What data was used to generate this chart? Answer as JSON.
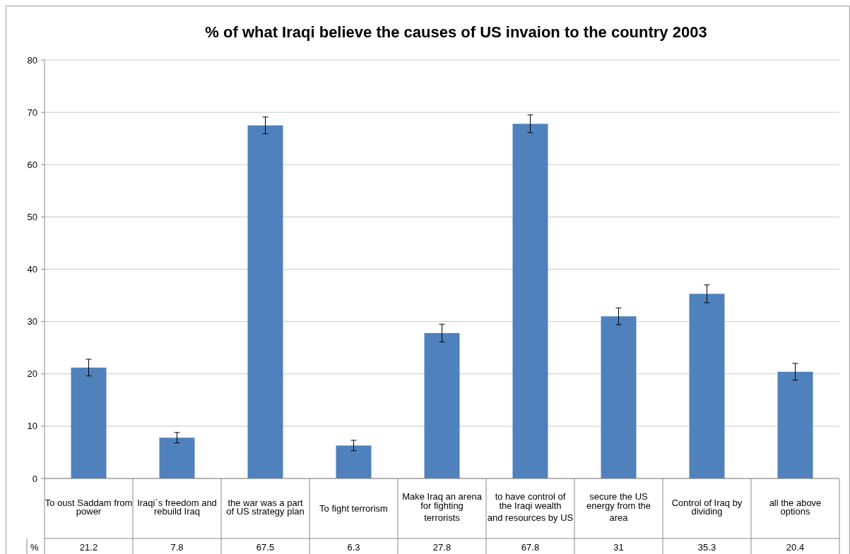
{
  "chart_data": {
    "type": "bar",
    "title": "% of what Iraqi believe the causes of US invaion to the country 2003",
    "categories": [
      "To oust Saddam from power",
      "Iraqi`s freedom and rebuild Iraq",
      "the war was a part of US strategy plan",
      "To fight terrorism",
      "Make Iraq an arena for fighting terrorists",
      "to have control of the Iraqi wealth and resources by US",
      "secure the US energy from the area",
      "Control of Iraq by dividing",
      "all the above options"
    ],
    "series": [
      {
        "name": "%",
        "color": "#4f81bd",
        "values": [
          21.2,
          7.8,
          67.5,
          6.3,
          27.8,
          67.8,
          31,
          35.3,
          20.4
        ],
        "errors": [
          1.6,
          1,
          1.6,
          1,
          1.7,
          1.7,
          1.6,
          1.7,
          1.6
        ]
      }
    ],
    "ylim": [
      0,
      80
    ],
    "yticks": [
      0,
      10,
      20,
      30,
      40,
      50,
      60,
      70,
      80
    ],
    "grid": "y",
    "data_labels": true
  }
}
